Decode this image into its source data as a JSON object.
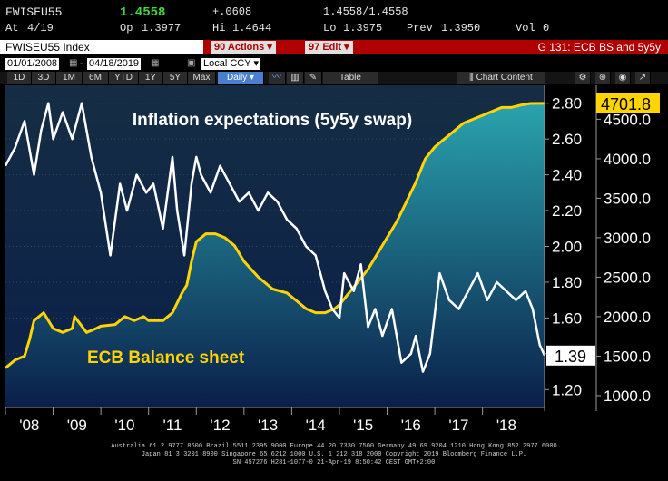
{
  "ticker_bar": {
    "ticker": "FWISEU55",
    "last": "1.4558",
    "change": "+.0608",
    "last_range": "1.4558/1.4558",
    "at_label": "At",
    "at_value": "4/19",
    "op_label": "Op",
    "op_value": "1.3977",
    "hi_label": "Hi",
    "hi_value": "1.4644",
    "lo_label": "Lo",
    "lo_value": "1.3975",
    "prev_label": "Prev",
    "prev_value": "1.3950",
    "vol_label": "Vol",
    "vol_value": "0"
  },
  "command_bar": {
    "security": "FWISEU55 Index",
    "actions_num": "90",
    "actions_label": "Actions",
    "edit_num": "97",
    "edit_label": "Edit",
    "title": "G 131: ECB BS and 5y5y"
  },
  "date_bar": {
    "start": "01/01/2008",
    "end": "04/18/2019",
    "currency": "Local CCY"
  },
  "range_bar": {
    "periods": [
      "1D",
      "3D",
      "1M",
      "6M",
      "YTD",
      "1Y",
      "5Y",
      "Max"
    ],
    "frequency": "Daily",
    "table_label": "Table",
    "chart_content_label": "Chart Content"
  },
  "colors": {
    "inflation_line": "#ffffff",
    "balance_line": "#ffd400",
    "command_bar_bg": "#b00000",
    "plot_bg_top": "#152d44",
    "plot_bg_bottom": "#0a1f49",
    "area_top": "#2aa3ae",
    "area_bottom": "#0a1f49"
  },
  "chart_data": {
    "type": "line",
    "annotations": [
      "Inflation expectations (5y5y swap)",
      "ECB Balance sheet"
    ],
    "x_tick_labels": [
      "'08",
      "'09",
      "'10",
      "'11",
      "'12",
      "'13",
      "'14",
      "'15",
      "'16",
      "'17",
      "'18"
    ],
    "xlim": [
      2008.0,
      2019.3
    ],
    "grid": true,
    "series": [
      {
        "axis": "left",
        "render": "line",
        "x": [
          2008.0,
          2008.2,
          2008.4,
          2008.6,
          2008.75,
          2008.9,
          2009.0,
          2009.2,
          2009.4,
          2009.6,
          2009.8,
          2010.0,
          2010.2,
          2010.4,
          2010.55,
          2010.75,
          2010.95,
          2011.1,
          2011.3,
          2011.5,
          2011.6,
          2011.75,
          2011.9,
          2012.0,
          2012.1,
          2012.3,
          2012.5,
          2012.7,
          2012.9,
          2013.1,
          2013.3,
          2013.5,
          2013.7,
          2013.9,
          2014.1,
          2014.3,
          2014.5,
          2014.7,
          2014.85,
          2015.0,
          2015.1,
          2015.3,
          2015.45,
          2015.6,
          2015.75,
          2015.9,
          2016.1,
          2016.3,
          2016.5,
          2016.6,
          2016.75,
          2016.9,
          2017.1,
          2017.3,
          2017.5,
          2017.7,
          2017.9,
          2018.1,
          2018.3,
          2018.5,
          2018.7,
          2018.9,
          2019.05,
          2019.2,
          2019.3
        ],
        "values": [
          2.45,
          2.55,
          2.7,
          2.4,
          2.65,
          2.8,
          2.6,
          2.75,
          2.6,
          2.8,
          2.5,
          2.3,
          1.95,
          2.35,
          2.2,
          2.4,
          2.3,
          2.35,
          2.1,
          2.5,
          2.2,
          1.95,
          2.35,
          2.5,
          2.4,
          2.3,
          2.45,
          2.35,
          2.25,
          2.3,
          2.2,
          2.3,
          2.25,
          2.15,
          2.1,
          2.0,
          1.95,
          1.75,
          1.65,
          1.6,
          1.85,
          1.75,
          1.9,
          1.55,
          1.65,
          1.5,
          1.65,
          1.35,
          1.4,
          1.5,
          1.3,
          1.4,
          1.85,
          1.7,
          1.65,
          1.75,
          1.85,
          1.7,
          1.8,
          1.75,
          1.7,
          1.75,
          1.65,
          1.45,
          1.39
        ]
      },
      {
        "axis": "right",
        "render": "area",
        "x": [
          2008.0,
          2008.2,
          2008.4,
          2008.5,
          2008.6,
          2008.8,
          2009.0,
          2009.2,
          2009.4,
          2009.45,
          2009.7,
          2009.9,
          2010.0,
          2010.3,
          2010.5,
          2010.7,
          2010.9,
          2011.0,
          2011.3,
          2011.5,
          2011.7,
          2011.8,
          2011.9,
          2012.0,
          2012.2,
          2012.4,
          2012.6,
          2012.8,
          2013.0,
          2013.3,
          2013.6,
          2013.9,
          2014.1,
          2014.3,
          2014.5,
          2014.7,
          2014.9,
          2015.0,
          2015.2,
          2015.4,
          2015.6,
          2015.8,
          2016.0,
          2016.2,
          2016.4,
          2016.6,
          2016.8,
          2017.0,
          2017.2,
          2017.4,
          2017.6,
          2017.8,
          2018.0,
          2018.2,
          2018.4,
          2018.6,
          2018.8,
          2019.0,
          2019.2,
          2019.3
        ],
        "values": [
          1350,
          1450,
          1500,
          1700,
          1950,
          2050,
          1850,
          1800,
          1850,
          2000,
          1800,
          1850,
          1880,
          1900,
          2000,
          1950,
          2000,
          1950,
          1950,
          2050,
          2300,
          2400,
          2700,
          2950,
          3050,
          3050,
          3000,
          2900,
          2700,
          2500,
          2350,
          2300,
          2200,
          2100,
          2050,
          2050,
          2100,
          2150,
          2300,
          2450,
          2600,
          2800,
          3000,
          3200,
          3450,
          3700,
          4000,
          4150,
          4250,
          4350,
          4450,
          4500,
          4550,
          4600,
          4650,
          4650,
          4680,
          4700,
          4701.8,
          4701.8
        ]
      }
    ],
    "left_axis": {
      "ylim": [
        1.1,
        2.9
      ],
      "ticks": [
        1.2,
        1.4,
        1.6,
        1.8,
        2.0,
        2.2,
        2.4,
        2.6,
        2.8
      ],
      "tick_labels": [
        "1.20",
        "1.40",
        "1.60",
        "1.80",
        "2.00",
        "2.20",
        "2.40",
        "2.60",
        "2.80"
      ],
      "last_value_label": "1.39"
    },
    "right_axis": {
      "ylim": [
        850,
        4930
      ],
      "ticks": [
        1000,
        1500,
        2000,
        2500,
        3000,
        3500,
        4000,
        4500
      ],
      "tick_labels": [
        "1000.0",
        "1500.0",
        "2000.0",
        "2500.0",
        "3000.0",
        "3500.0",
        "4000.0",
        "4500.0"
      ],
      "last_value_label": "4701.8"
    }
  },
  "footer": {
    "line1": "Australia 61 2 9777 8600 Brazil 5511 2395 9000 Europe 44 20 7330 7500 Germany 49 69 9204 1210 Hong Kong 852 2977 6000",
    "line2": "Japan 81 3 3201 8900        Singapore 65 6212 1000        U.S. 1 212 318 2000          Copyright 2019 Bloomberg Finance L.P.",
    "line3": "SN 457276 H281-1077-0 21-Apr-19  8:50:42 CEST GMT+2:00"
  }
}
